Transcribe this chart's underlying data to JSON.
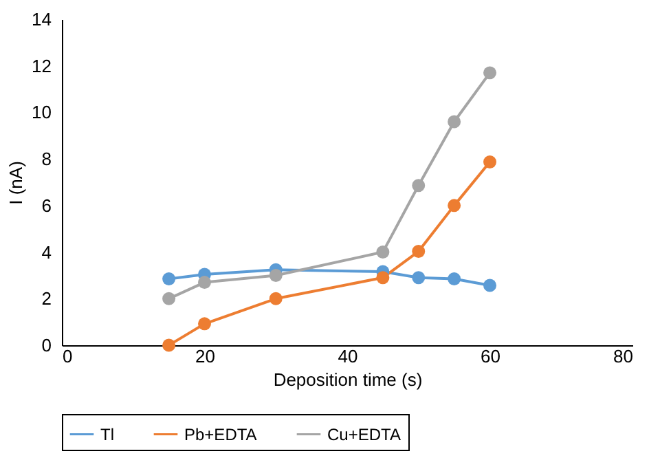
{
  "chart_data": {
    "type": "line",
    "xlabel": "Deposition time (s)",
    "ylabel": "I (nA)",
    "x": [
      15,
      20,
      30,
      45,
      50,
      55,
      60
    ],
    "series": [
      {
        "name": "Tl",
        "color": "#5b9bd5",
        "values": [
          2.85,
          3.04,
          3.24,
          3.16,
          2.9,
          2.85,
          2.57
        ]
      },
      {
        "name": "Pb+EDTA",
        "color": "#ed7d31",
        "values": [
          0,
          0.92,
          2.0,
          2.9,
          4.03,
          6.0,
          7.87
        ]
      },
      {
        "name": "Cu+EDTA",
        "color": "#a5a5a5",
        "values": [
          2.0,
          2.7,
          3.0,
          4.0,
          6.86,
          9.6,
          11.7
        ]
      }
    ],
    "xlim": [
      0,
      80
    ],
    "xticks": [
      0,
      20,
      40,
      60,
      80
    ],
    "ylim": [
      0,
      14
    ],
    "yticks": [
      0,
      2,
      4,
      6,
      8,
      10,
      12,
      14
    ],
    "grid": false,
    "legend": "bottom",
    "marker": "circle",
    "line_style": "solid"
  }
}
